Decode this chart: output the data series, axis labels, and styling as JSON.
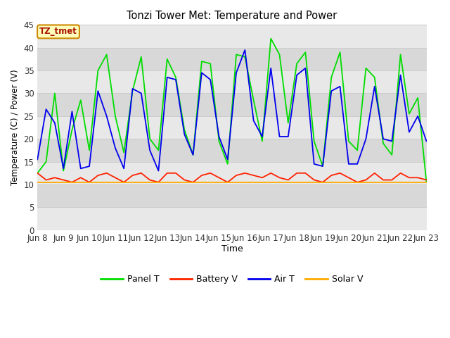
{
  "title": "Tonzi Tower Met: Temperature and Power",
  "xlabel": "Time",
  "ylabel": "Temperature (C) / Power (V)",
  "annotation": "TZ_tmet",
  "ylim": [
    0,
    45
  ],
  "yticks": [
    0,
    5,
    10,
    15,
    20,
    25,
    30,
    35,
    40,
    45
  ],
  "xtick_labels": [
    "Jun 8",
    "Jun 9",
    "Jun 10",
    "Jun 11",
    "Jun 12",
    "Jun 13",
    "Jun 14",
    "Jun 15",
    "Jun 16",
    "Jun 17",
    "Jun 18",
    "Jun 19",
    "Jun 20",
    "Jun 21",
    "Jun 22",
    "Jun 23"
  ],
  "legend_entries": [
    "Panel T",
    "Battery V",
    "Air T",
    "Solar V"
  ],
  "legend_colors": [
    "#00dd00",
    "#ff2200",
    "#0000ee",
    "#ffaa00"
  ],
  "fig_bg_color": "#ffffff",
  "band_colors": [
    "#e8e8e8",
    "#d8d8d8"
  ],
  "line_colors": {
    "panel_t": "#00dd00",
    "battery_v": "#ff2200",
    "air_t": "#0000ee",
    "solar_v": "#ffaa00"
  },
  "panel_t": [
    12.5,
    15.0,
    30.0,
    13.0,
    22.0,
    28.5,
    17.5,
    35.0,
    38.5,
    25.0,
    17.0,
    30.5,
    38.0,
    20.0,
    17.5,
    37.5,
    33.5,
    22.0,
    16.5,
    37.0,
    36.5,
    19.5,
    14.5,
    38.5,
    38.0,
    28.5,
    19.5,
    42.0,
    38.5,
    23.5,
    36.5,
    39.0,
    19.5,
    14.0,
    33.5,
    39.0,
    19.5,
    17.5,
    35.5,
    33.5,
    19.0,
    16.5,
    38.5,
    25.5,
    29.0,
    10.5
  ],
  "air_t": [
    15.5,
    26.5,
    23.5,
    13.5,
    26.0,
    13.5,
    14.0,
    30.5,
    25.0,
    18.0,
    13.5,
    31.0,
    30.0,
    17.5,
    13.0,
    33.5,
    33.0,
    21.0,
    16.5,
    34.5,
    33.0,
    20.5,
    15.5,
    34.5,
    39.5,
    24.0,
    20.5,
    35.5,
    20.5,
    20.5,
    34.0,
    35.5,
    14.5,
    14.0,
    30.5,
    31.5,
    14.5,
    14.5,
    20.0,
    31.5,
    20.0,
    19.5,
    34.0,
    21.5,
    25.0,
    19.5
  ],
  "battery_v": [
    12.5,
    11.0,
    11.5,
    11.0,
    10.5,
    11.5,
    10.5,
    12.0,
    12.5,
    11.5,
    10.5,
    12.0,
    12.5,
    11.0,
    10.5,
    12.5,
    12.5,
    11.0,
    10.5,
    12.0,
    12.5,
    11.5,
    10.5,
    12.0,
    12.5,
    12.0,
    11.5,
    12.5,
    11.5,
    11.0,
    12.5,
    12.5,
    11.0,
    10.5,
    12.0,
    12.5,
    11.5,
    10.5,
    11.0,
    12.5,
    11.0,
    11.0,
    12.5,
    11.5,
    11.5,
    11.0
  ],
  "solar_v": [
    10.5,
    10.5,
    10.5,
    10.5,
    10.5,
    10.5,
    10.5,
    10.5,
    10.5,
    10.5,
    10.5,
    10.5,
    10.5,
    10.5,
    10.5,
    10.5,
    10.5,
    10.5,
    10.5,
    10.5,
    10.5,
    10.5,
    10.5,
    10.5,
    10.5,
    10.5,
    10.5,
    10.5,
    10.5,
    10.5,
    10.5,
    10.5,
    10.5,
    10.5,
    10.5,
    10.5,
    10.5,
    10.5,
    10.5,
    10.5,
    10.5,
    10.5,
    10.5,
    10.5,
    10.5,
    10.5
  ]
}
